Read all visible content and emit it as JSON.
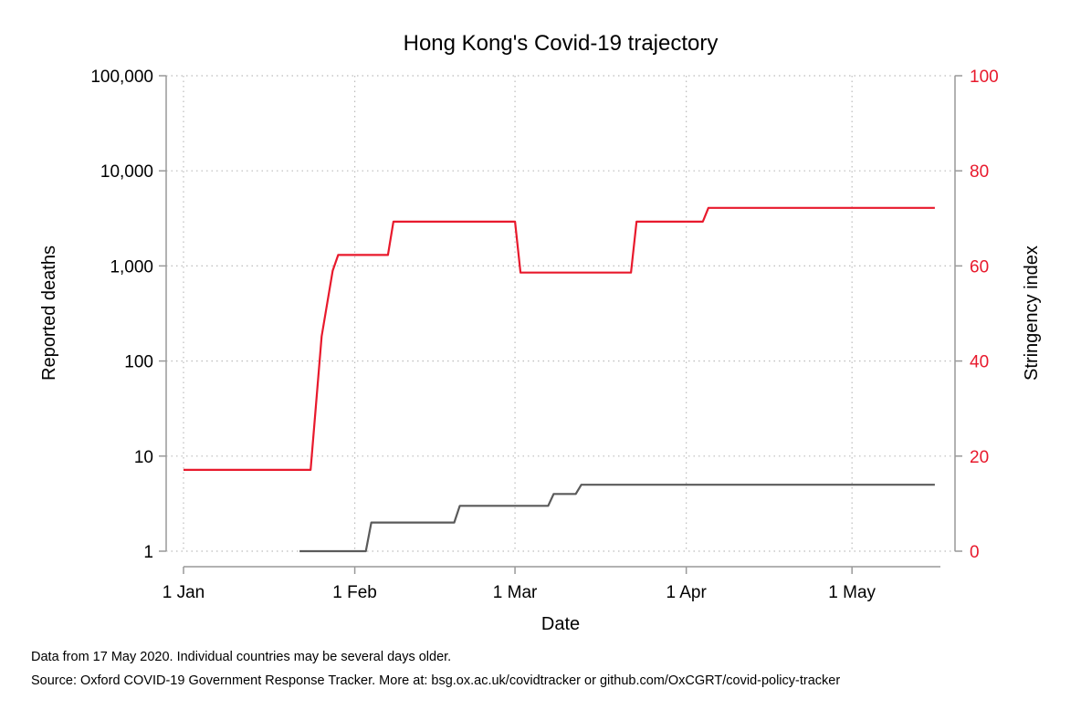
{
  "chart_data": {
    "type": "line",
    "title": "Hong Kong's Covid-19 trajectory",
    "xlabel": "Date",
    "ylabel_left": "Reported deaths",
    "ylabel_right": "Stringency index",
    "x_ticks": [
      "1 Jan",
      "1 Feb",
      "1 Mar",
      "1 Apr",
      "1 May"
    ],
    "y_left_ticks": [
      "1",
      "10",
      "100",
      "1,000",
      "10,000",
      "100,000"
    ],
    "y_left_scale": "log",
    "y_left_range": [
      1,
      100000
    ],
    "y_right_ticks": [
      "0",
      "20",
      "40",
      "60",
      "80",
      "100"
    ],
    "y_right_range": [
      0,
      100
    ],
    "x_range": [
      "2020-01-01",
      "2020-05-17"
    ],
    "grid": "dotted",
    "colors": {
      "deaths": "#5a5a5a",
      "stringency": "#e8192c",
      "axis": "#999999"
    },
    "series": [
      {
        "name": "Stringency index",
        "axis": "right",
        "step": true,
        "points": [
          [
            "2020-01-01",
            17.1
          ],
          [
            "2020-01-24",
            17.1
          ],
          [
            "2020-01-26",
            45.2
          ],
          [
            "2020-01-28",
            59.0
          ],
          [
            "2020-01-29",
            62.3
          ],
          [
            "2020-02-07",
            62.3
          ],
          [
            "2020-02-08",
            69.3
          ],
          [
            "2020-03-01",
            69.3
          ],
          [
            "2020-03-02",
            58.6
          ],
          [
            "2020-03-22",
            58.6
          ],
          [
            "2020-03-23",
            69.3
          ],
          [
            "2020-04-04",
            69.3
          ],
          [
            "2020-04-05",
            72.2
          ],
          [
            "2020-05-16",
            72.2
          ]
        ]
      },
      {
        "name": "Reported deaths",
        "axis": "left",
        "step": true,
        "points": [
          [
            "2020-01-22",
            1
          ],
          [
            "2020-02-03",
            1
          ],
          [
            "2020-02-04",
            2
          ],
          [
            "2020-02-19",
            2
          ],
          [
            "2020-02-20",
            3
          ],
          [
            "2020-03-07",
            3
          ],
          [
            "2020-03-08",
            4
          ],
          [
            "2020-03-12",
            4
          ],
          [
            "2020-03-13",
            5
          ],
          [
            "2020-05-16",
            5
          ]
        ]
      }
    ]
  },
  "notes": {
    "line1": "Data from 17 May 2020. Individual countries may be several days older.",
    "line2": "Source: Oxford COVID-19 Government Response Tracker. More at: bsg.ox.ac.uk/covidtracker or github.com/OxCGRT/covid-policy-tracker"
  }
}
